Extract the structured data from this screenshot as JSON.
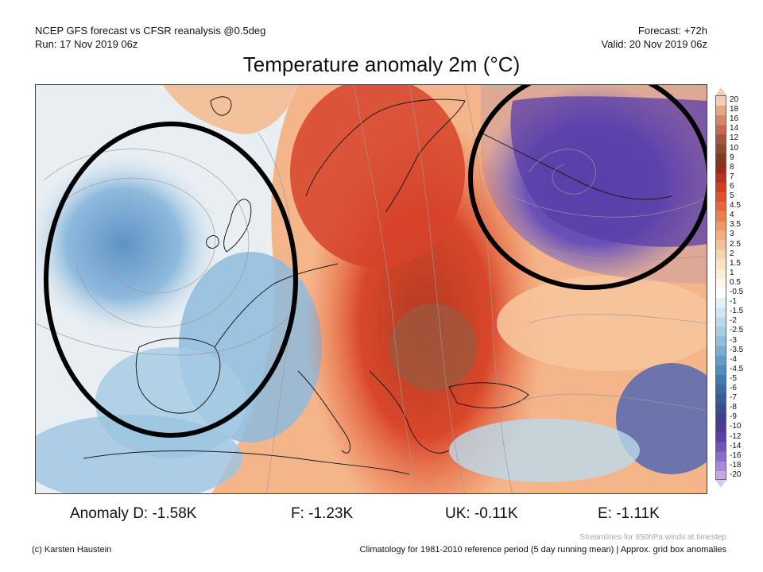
{
  "header": {
    "model_line": "NCEP GFS forecast vs CFSR reanalysis @0.5deg",
    "run_line": "Run: 17 Nov 2019 06z",
    "forecast_line": "Forecast: +72h",
    "valid_line": "Valid: 20 Nov 2019 06z"
  },
  "title": "Temperature anomaly 2m (°C)",
  "colorbar": {
    "ticks": [
      "20",
      "18",
      "16",
      "14",
      "12",
      "10",
      "9",
      "8",
      "7",
      "6",
      "5",
      "4.5",
      "4",
      "3.5",
      "3",
      "2.5",
      "2",
      "1.5",
      "1",
      "0.5",
      "-0.5",
      "-1",
      "-1.5",
      "-2",
      "-2.5",
      "-3",
      "-3.5",
      "-4",
      "-4.5",
      "-5",
      "-6",
      "-7",
      "-8",
      "-9",
      "-10",
      "-12",
      "-14",
      "-16",
      "-18",
      "-20"
    ],
    "colors": [
      "#f4cdb6",
      "#e7a583",
      "#d98465",
      "#c8664e",
      "#a8543c",
      "#8c4a30",
      "#7a3c22",
      "#9a2b1b",
      "#bb2f20",
      "#d43d22",
      "#e2512a",
      "#e9663a",
      "#ee7d4c",
      "#f29664",
      "#f5ad80",
      "#f6c197",
      "#f8d4ac",
      "#f9e3c2",
      "#fbeed6",
      "#fdf8ea",
      "#ffffff",
      "#e4f1f8",
      "#cfe5f2",
      "#bcd9ec",
      "#a6cce5",
      "#8fbddd",
      "#79aed4",
      "#629dca",
      "#4e8ec0",
      "#3f7cb4",
      "#3a6aa6",
      "#385b9a",
      "#3a4c8f",
      "#423f8c",
      "#503a99",
      "#5e3fa8",
      "#7252bb",
      "#8b6ccb",
      "#a689d9",
      "#c2a9e6"
    ]
  },
  "anomalies": [
    {
      "label": "Anomaly D: -1.58K"
    },
    {
      "label": "F: -1.23K"
    },
    {
      "label": "UK: -0.11K"
    },
    {
      "label": "E: -1.11K"
    }
  ],
  "footer": {
    "credit": "(c) Karsten Haustein",
    "streamlines_note": "Streamlines for 850hPa winds at timestep",
    "climatology_note": "Climatology for 1981-2010 reference period (5 day running mean) | Approx. grid box anomalies"
  }
}
